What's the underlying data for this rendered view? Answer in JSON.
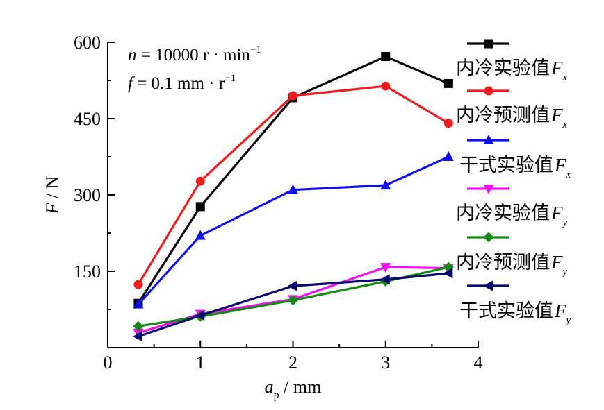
{
  "chart_data": {
    "type": "line",
    "x": [
      0.33,
      1,
      2,
      3,
      3.68
    ],
    "xlim": [
      0,
      4
    ],
    "ylim": [
      0,
      600
    ],
    "xticks": [
      0,
      1,
      2,
      3,
      4
    ],
    "yticks": [
      150,
      300,
      450,
      600
    ],
    "xlabel": {
      "main": "a",
      "sub": "p",
      "unit": " / mm"
    },
    "ylabel": {
      "main": "F",
      "unit": " / N"
    },
    "annotations": [
      {
        "var": "n",
        "text": " = 10000 r · min",
        "sup": "−1"
      },
      {
        "var": "f",
        "text": " = 0.1 mm · r",
        "sup": "−1"
      }
    ],
    "legend_position": "right",
    "series": [
      {
        "name": "内冷实验值",
        "sym": "F",
        "sub": "x",
        "color": "#000000",
        "marker": "square",
        "values": [
          87,
          277,
          491,
          572,
          519
        ]
      },
      {
        "name": "内冷预测值",
        "sym": "F",
        "sub": "x",
        "color": "#ee1c1c",
        "marker": "circle",
        "values": [
          124,
          327,
          495,
          514,
          441
        ]
      },
      {
        "name": "干式实验值",
        "sym": "F",
        "sub": "x",
        "color": "#1010ee",
        "marker": "triangle",
        "values": [
          85,
          220,
          310,
          319,
          375
        ]
      },
      {
        "name": "内冷实验值",
        "sym": "F",
        "sub": "y",
        "color": "#ee10ee",
        "marker": "tri-down",
        "values": [
          29,
          66,
          95,
          158,
          156
        ]
      },
      {
        "name": "内冷预测值",
        "sym": "F",
        "sub": "y",
        "color": "#138a13",
        "marker": "diamond",
        "values": [
          42,
          61,
          93,
          130,
          158
        ]
      },
      {
        "name": "干式实验值",
        "sym": "F",
        "sub": "y",
        "color": "#0a0a6e",
        "marker": "tri-left",
        "values": [
          22,
          63,
          121,
          134,
          146
        ]
      }
    ]
  }
}
